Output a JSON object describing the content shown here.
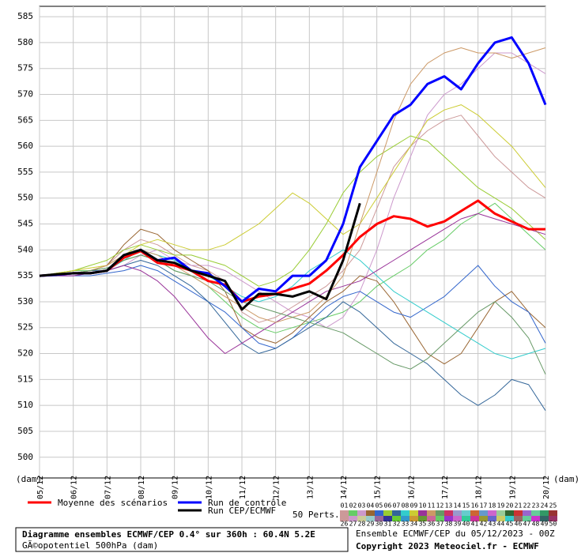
{
  "chart_data": {
    "type": "line",
    "title": "Diagramme ensembles ECMWF/CEP 0.4° sur 360h : 60.4N 5.2E",
    "subtitle": "GÃ©opotentiel 500hPa (dam)",
    "run_info": "Ensemble ECMWF/CEP du 05/12/2023 - 00Z",
    "copyright": "Copyright 2023 Meteociel.fr - ECMWF",
    "y_unit": "(dam)",
    "members_label": "50 Perts.",
    "grid": true,
    "xlim": [
      0,
      360
    ],
    "xticks": [
      {
        "value": 0,
        "label": "05/12"
      },
      {
        "value": 24,
        "label": "06/12"
      },
      {
        "value": 48,
        "label": "07/12"
      },
      {
        "value": 72,
        "label": "08/12"
      },
      {
        "value": 96,
        "label": "09/12"
      },
      {
        "value": 120,
        "label": "10/12"
      },
      {
        "value": 144,
        "label": "11/12"
      },
      {
        "value": 168,
        "label": "12/12"
      },
      {
        "value": 192,
        "label": "13/12"
      },
      {
        "value": 216,
        "label": "14/12"
      },
      {
        "value": 240,
        "label": "15/12"
      },
      {
        "value": 264,
        "label": "16/12"
      },
      {
        "value": 288,
        "label": "17/12"
      },
      {
        "value": 312,
        "label": "18/12"
      },
      {
        "value": 336,
        "label": "19/12"
      },
      {
        "value": 360,
        "label": "20/12"
      }
    ],
    "ylim": [
      496,
      587
    ],
    "yticks": [
      500,
      505,
      510,
      515,
      520,
      525,
      530,
      535,
      540,
      545,
      550,
      555,
      560,
      565,
      570,
      575,
      580,
      585
    ],
    "x": [
      0,
      12,
      24,
      36,
      48,
      60,
      72,
      84,
      96,
      108,
      120,
      132,
      144,
      156,
      168,
      180,
      192,
      204,
      216,
      228,
      240,
      252,
      264,
      276,
      288,
      300,
      312,
      324,
      336,
      348,
      360
    ],
    "series": [
      {
        "name": "Moyenne des scénarios",
        "color": "#ff0000",
        "values": [
          535,
          535.2,
          535.5,
          535.5,
          536,
          538.5,
          539.8,
          537.5,
          537,
          536,
          534,
          533.3,
          530,
          531,
          531.5,
          532.5,
          533.5,
          536,
          539,
          542.5,
          545,
          546.5,
          546,
          544.5,
          545.5,
          547.5,
          549.5,
          547,
          545.5,
          544,
          544
        ]
      },
      {
        "name": "Run de contrôle",
        "color": "#0000ff",
        "values": [
          535,
          535.2,
          535.5,
          535.5,
          536,
          539,
          540,
          538,
          538.5,
          536,
          535.5,
          533,
          530,
          532.5,
          532,
          535,
          535,
          538,
          545,
          556,
          561,
          566,
          568,
          572,
          573.5,
          571,
          576,
          580,
          581,
          576,
          568
        ]
      },
      {
        "name": "Run CEP/ECMWF",
        "color": "#000000",
        "values": [
          535,
          535.3,
          535.5,
          535.5,
          536,
          539,
          540,
          538,
          537.5,
          536,
          535,
          534,
          528.5,
          531.5,
          531.5,
          531,
          532,
          530.5,
          538,
          549,
          null,
          null,
          null,
          null,
          null,
          null,
          null,
          null,
          null,
          null,
          null
        ]
      }
    ],
    "members": [
      {
        "label": "01",
        "color": "#cc9999",
        "values": [
          535,
          535,
          535.5,
          536,
          537,
          540,
          542,
          541,
          539,
          537,
          536,
          534,
          528,
          526,
          527,
          529,
          531,
          533,
          536,
          540,
          548,
          556,
          560,
          563,
          565,
          566,
          562,
          558,
          555,
          552,
          550
        ]
      },
      {
        "label": "02",
        "color": "#66cc66",
        "values": [
          535,
          535.5,
          536,
          536,
          536.5,
          538,
          539,
          538,
          536,
          535,
          533,
          530,
          527,
          525,
          524,
          525,
          526,
          527,
          528,
          530,
          533,
          535,
          537,
          540,
          542,
          545,
          547,
          549,
          546,
          543,
          540
        ]
      },
      {
        "label": "03",
        "color": "#cc99cc",
        "values": [
          535,
          535,
          535,
          535.5,
          536,
          537,
          539,
          540,
          538,
          537,
          537,
          536,
          534,
          532,
          530,
          528,
          527,
          525,
          527,
          532,
          540,
          550,
          558,
          566,
          570,
          572,
          575,
          578,
          578,
          576,
          574
        ]
      },
      {
        "label": "04",
        "color": "#996633",
        "values": [
          535,
          535.3,
          535.5,
          536,
          537,
          541,
          544,
          543,
          540,
          538,
          536,
          532,
          525,
          523,
          522,
          524,
          527,
          530,
          532,
          535,
          534,
          530,
          525,
          520,
          518,
          520,
          525,
          530,
          532,
          528,
          525
        ]
      },
      {
        "label": "05",
        "color": "#3366cc",
        "values": [
          535,
          535,
          535,
          535,
          535.5,
          536,
          537,
          536,
          534,
          532,
          530,
          528,
          525,
          522,
          521,
          523,
          526,
          529,
          531,
          532,
          530,
          528,
          527,
          529,
          531,
          534,
          537,
          533,
          530,
          528,
          522
        ]
      },
      {
        "label": "06",
        "color": "#99cc33",
        "values": [
          535,
          535.5,
          536,
          537,
          538,
          540,
          541,
          540,
          539,
          539,
          538,
          537,
          535,
          533,
          534,
          536,
          540,
          545,
          551,
          555,
          558,
          560,
          562,
          561,
          558,
          555,
          552,
          550,
          548,
          545,
          542
        ]
      },
      {
        "label": "07",
        "color": "#336699",
        "values": [
          535,
          535,
          535.5,
          536,
          536,
          537,
          538,
          537,
          535,
          533,
          530,
          526,
          522,
          520,
          521,
          523,
          525,
          527,
          530,
          528,
          525,
          522,
          520,
          518,
          515,
          512,
          510,
          512,
          515,
          514,
          509
        ]
      },
      {
        "label": "08",
        "color": "#33cccc",
        "values": [
          535,
          535.2,
          535.5,
          535.5,
          536,
          538,
          540,
          539,
          538,
          536,
          535,
          533,
          531,
          530,
          531,
          533,
          536,
          538,
          540,
          538,
          535,
          532,
          530,
          528,
          526,
          524,
          522,
          520,
          519,
          520,
          521
        ]
      },
      {
        "label": "09",
        "color": "#cccc33",
        "values": [
          535,
          535.5,
          536,
          536.5,
          537,
          539,
          541,
          542,
          541,
          540,
          540,
          541,
          543,
          545,
          548,
          551,
          549,
          546,
          543,
          545,
          550,
          555,
          560,
          565,
          567,
          568,
          566,
          563,
          560,
          556,
          552
        ]
      },
      {
        "label": "10",
        "color": "#993399",
        "values": [
          535,
          535,
          535,
          535.5,
          536,
          537,
          536,
          534,
          531,
          527,
          523,
          520,
          522,
          524,
          526,
          528,
          530,
          532,
          533,
          534,
          536,
          538,
          540,
          542,
          544,
          546,
          547,
          546,
          545,
          544,
          543
        ]
      },
      {
        "label": "11",
        "color": "#cc9966",
        "values": [
          535,
          535.3,
          535.5,
          536,
          537,
          539,
          540,
          539,
          537,
          535,
          533,
          531,
          529,
          527,
          526,
          527,
          528,
          531,
          535,
          545,
          555,
          565,
          572,
          576,
          578,
          579,
          578,
          578,
          577,
          578,
          579
        ]
      },
      {
        "label": "12",
        "color": "#669966",
        "values": [
          535,
          535,
          535.5,
          536,
          536.5,
          538,
          539,
          538,
          536,
          535,
          534,
          532,
          530,
          529,
          528,
          527,
          526,
          525,
          524,
          522,
          520,
          518,
          517,
          519,
          522,
          525,
          528,
          530,
          527,
          523,
          516
        ]
      },
      {
        "label": "13",
        "color": "#cc3366"
      },
      {
        "label": "14",
        "color": "#9999cc"
      },
      {
        "label": "15",
        "color": "#66cccc"
      },
      {
        "label": "16",
        "color": "#cc6633"
      },
      {
        "label": "17",
        "color": "#6699cc"
      },
      {
        "label": "18",
        "color": "#cc66cc"
      },
      {
        "label": "19",
        "color": "#99cc99"
      },
      {
        "label": "20",
        "color": "#336633"
      },
      {
        "label": "21",
        "color": "#cc3333"
      },
      {
        "label": "22",
        "color": "#9966cc"
      },
      {
        "label": "23",
        "color": "#66cc99"
      },
      {
        "label": "24",
        "color": "#339966"
      },
      {
        "label": "25",
        "color": "#993333"
      },
      {
        "label": "26",
        "color": "#cc9999"
      },
      {
        "label": "27",
        "color": "#cc99cc"
      },
      {
        "label": "28",
        "color": "#cccc99"
      },
      {
        "label": "29",
        "color": "#99cccc"
      },
      {
        "label": "30",
        "color": "#996699"
      },
      {
        "label": "31",
        "color": "#333399"
      },
      {
        "label": "32",
        "color": "#66cc33"
      },
      {
        "label": "33",
        "color": "#3399cc"
      },
      {
        "label": "34",
        "color": "#cc9933"
      },
      {
        "label": "35",
        "color": "#669933"
      },
      {
        "label": "36",
        "color": "#cc6699"
      },
      {
        "label": "37",
        "color": "#66cc66"
      },
      {
        "label": "38",
        "color": "#9933cc"
      },
      {
        "label": "39",
        "color": "#cc66cc"
      },
      {
        "label": "40",
        "color": "#33cc99"
      },
      {
        "label": "41",
        "color": "#cc3399"
      },
      {
        "label": "42",
        "color": "#999933"
      },
      {
        "label": "43",
        "color": "#6666cc"
      },
      {
        "label": "44",
        "color": "#cccc66"
      },
      {
        "label": "45",
        "color": "#33cccc"
      },
      {
        "label": "46",
        "color": "#996666"
      },
      {
        "label": "47",
        "color": "#66cc99"
      },
      {
        "label": "48",
        "color": "#cc33cc"
      },
      {
        "label": "49",
        "color": "#336666"
      },
      {
        "label": "50",
        "color": "#993366"
      }
    ]
  }
}
